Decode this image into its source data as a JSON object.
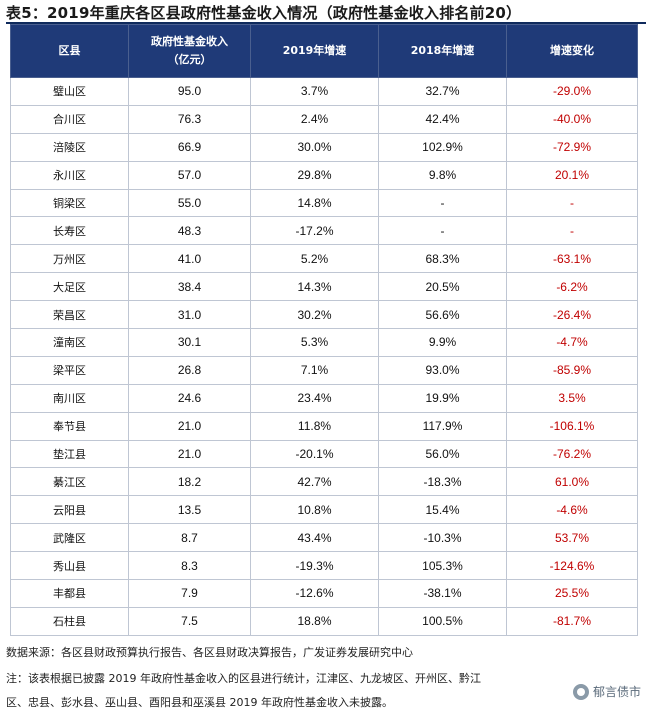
{
  "title": "表5：2019年重庆各区县政府性基金收入情况（政府性基金收入排名前20）",
  "headers": {
    "district": "区县",
    "income_line1": "政府性基金收入",
    "income_line2": "（亿元）",
    "growth_2019": "2019年增速",
    "growth_2018": "2018年增速",
    "change": "增速变化"
  },
  "rows": [
    {
      "name": "璧山区",
      "income": "95.0",
      "g2019": "3.7%",
      "g2018": "32.7%",
      "change": "-29.0%"
    },
    {
      "name": "合川区",
      "income": "76.3",
      "g2019": "2.4%",
      "g2018": "42.4%",
      "change": "-40.0%"
    },
    {
      "name": "涪陵区",
      "income": "66.9",
      "g2019": "30.0%",
      "g2018": "102.9%",
      "change": "-72.9%"
    },
    {
      "name": "永川区",
      "income": "57.0",
      "g2019": "29.8%",
      "g2018": "9.8%",
      "change": "20.1%"
    },
    {
      "name": "铜梁区",
      "income": "55.0",
      "g2019": "14.8%",
      "g2018": "-",
      "change": "-"
    },
    {
      "name": "长寿区",
      "income": "48.3",
      "g2019": "-17.2%",
      "g2018": "-",
      "change": "-"
    },
    {
      "name": "万州区",
      "income": "41.0",
      "g2019": "5.2%",
      "g2018": "68.3%",
      "change": "-63.1%"
    },
    {
      "name": "大足区",
      "income": "38.4",
      "g2019": "14.3%",
      "g2018": "20.5%",
      "change": "-6.2%"
    },
    {
      "name": "荣昌区",
      "income": "31.0",
      "g2019": "30.2%",
      "g2018": "56.6%",
      "change": "-26.4%"
    },
    {
      "name": "潼南区",
      "income": "30.1",
      "g2019": "5.3%",
      "g2018": "9.9%",
      "change": "-4.7%"
    },
    {
      "name": "梁平区",
      "income": "26.8",
      "g2019": "7.1%",
      "g2018": "93.0%",
      "change": "-85.9%"
    },
    {
      "name": "南川区",
      "income": "24.6",
      "g2019": "23.4%",
      "g2018": "19.9%",
      "change": "3.5%"
    },
    {
      "name": "奉节县",
      "income": "21.0",
      "g2019": "11.8%",
      "g2018": "117.9%",
      "change": "-106.1%"
    },
    {
      "name": "垫江县",
      "income": "21.0",
      "g2019": "-20.1%",
      "g2018": "56.0%",
      "change": "-76.2%"
    },
    {
      "name": "綦江区",
      "income": "18.2",
      "g2019": "42.7%",
      "g2018": "-18.3%",
      "change": "61.0%"
    },
    {
      "name": "云阳县",
      "income": "13.5",
      "g2019": "10.8%",
      "g2018": "15.4%",
      "change": "-4.6%"
    },
    {
      "name": "武隆区",
      "income": "8.7",
      "g2019": "43.4%",
      "g2018": "-10.3%",
      "change": "53.7%"
    },
    {
      "name": "秀山县",
      "income": "8.3",
      "g2019": "-19.3%",
      "g2018": "105.3%",
      "change": "-124.6%"
    },
    {
      "name": "丰都县",
      "income": "7.9",
      "g2019": "-12.6%",
      "g2018": "-38.1%",
      "change": "25.5%"
    },
    {
      "name": "石柱县",
      "income": "7.5",
      "g2019": "18.8%",
      "g2018": "100.5%",
      "change": "-81.7%"
    }
  ],
  "source": "数据来源：各区县财政预算执行报告、各区县财政决算报告，广发证券发展研究中心",
  "note_line1": "注：该表根据已披露 2019 年政府性基金收入的区县进行统计，江津区、九龙坡区、开州区、黔江",
  "note_line2": "区、忠县、彭水县、巫山县、酉阳县和巫溪县 2019 年政府性基金收入未披露。",
  "watermark": "郁言债市",
  "colors": {
    "header_bg": "#1f3a78",
    "negative_change": "#c00000"
  }
}
